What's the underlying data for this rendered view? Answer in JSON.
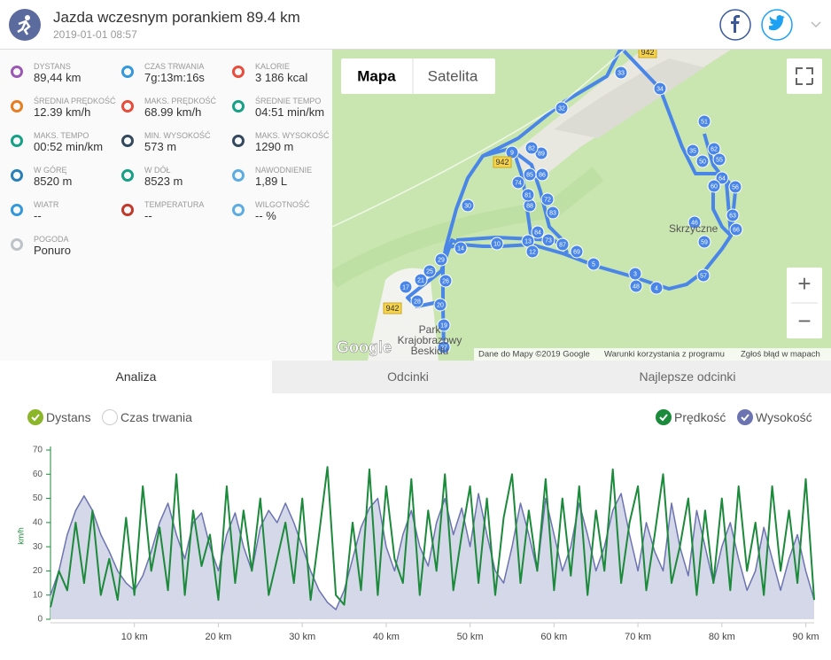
{
  "header": {
    "title": "Jazda wczesnym porankiem 89.4 km",
    "date": "2019-01-01 08:57"
  },
  "stats": [
    {
      "label": "DYSTANS",
      "value": "89,44 km",
      "color": "#9b59b6"
    },
    {
      "label": "CZAS TRWANIA",
      "value": "7g:13m:16s",
      "color": "#3498db"
    },
    {
      "label": "KALORIE",
      "value": "3 186 kcal",
      "color": "#e74c3c"
    },
    {
      "label": "ŚREDNIA PRĘDKOŚĆ",
      "value": "12.39 km/h",
      "color": "#e67e22"
    },
    {
      "label": "MAKS. PRĘDKOŚĆ",
      "value": "68.99 km/h",
      "color": "#e74c3c"
    },
    {
      "label": "ŚREDNIE TEMPO",
      "value": "04:51 min/km",
      "color": "#16a085"
    },
    {
      "label": "MAKS. TEMPO",
      "value": "00:52 min/km",
      "color": "#16a085"
    },
    {
      "label": "MIN. WYSOKOŚĆ",
      "value": "573 m",
      "color": "#34495e"
    },
    {
      "label": "MAKS. WYSOKOŚĆ",
      "value": "1290 m",
      "color": "#34495e"
    },
    {
      "label": "W GÓRĘ",
      "value": "8520 m",
      "color": "#2980b9"
    },
    {
      "label": "W DÓŁ",
      "value": "8523 m",
      "color": "#16a085"
    },
    {
      "label": "NAWODNIENIE",
      "value": "1,89 L",
      "color": "#5dade2"
    },
    {
      "label": "WIATR",
      "value": "--",
      "color": "#3498db"
    },
    {
      "label": "TEMPERATURA",
      "value": "--",
      "color": "#c0392b"
    },
    {
      "label": "WILGOTNOŚĆ",
      "value": "-- %",
      "color": "#5dade2"
    },
    {
      "label": "POGODA",
      "value": "Ponuro",
      "color": "#bdc3c7"
    }
  ],
  "map": {
    "buttons": [
      "Mapa",
      "Satelita"
    ],
    "road_label": "942",
    "place": "Skrzyczne",
    "park": [
      "Park",
      "Krajobrazowy",
      "Beskidu"
    ],
    "logo": "Google",
    "footer": [
      "Dane do Mapy ©2019 Google",
      "Warunki korzystania z programu",
      "Zgłoś błąd w mapach"
    ],
    "zoom": [
      "+",
      "−"
    ],
    "markers": [
      "33",
      "34",
      "32",
      "51",
      "35",
      "50",
      "62",
      "55",
      "64",
      "60",
      "56",
      "63",
      "66",
      "46",
      "59",
      "57",
      "4",
      "48",
      "3",
      "5",
      "69",
      "87",
      "73",
      "13",
      "12",
      "84",
      "83",
      "72",
      "88",
      "81",
      "74",
      "85",
      "86",
      "89",
      "82",
      "9",
      "10",
      "14",
      "30",
      "29",
      "25",
      "21",
      "26",
      "17",
      "28",
      "20",
      "19",
      "27"
    ]
  },
  "tabs": [
    "Analiza",
    "Odcinki",
    "Najlepsze odcinki"
  ],
  "x_modes": [
    {
      "label": "Dystans",
      "checked": true
    },
    {
      "label": "Czas trwania",
      "checked": false
    }
  ],
  "chart_data": {
    "type": "line",
    "ylabel": "km/h",
    "x": [
      0,
      1,
      2,
      3,
      4,
      5,
      6,
      7,
      8,
      9,
      10,
      11,
      12,
      13,
      14,
      15,
      16,
      17,
      18,
      19,
      20,
      21,
      22,
      23,
      24,
      25,
      26,
      27,
      28,
      29,
      30,
      31,
      32,
      33,
      34,
      35,
      36,
      37,
      38,
      39,
      40,
      41,
      42,
      43,
      44,
      45,
      46,
      47,
      48,
      49,
      50,
      51,
      52,
      53,
      54,
      55,
      56,
      57,
      58,
      59,
      60,
      61,
      62,
      63,
      64,
      65,
      66,
      67,
      68,
      69,
      70,
      71,
      72,
      73,
      74,
      75,
      76,
      77,
      78,
      79,
      80,
      81,
      82,
      83,
      84,
      85,
      86,
      87,
      88,
      89,
      90,
      91
    ],
    "series": [
      {
        "name": "Wysokość",
        "color": "#6b74b0",
        "fill": "#d5d8e8",
        "checked": true,
        "values": [
          10,
          20,
          35,
          45,
          51,
          45,
          35,
          28,
          20,
          15,
          12,
          18,
          28,
          40,
          48,
          35,
          25,
          40,
          44,
          30,
          20,
          35,
          44,
          30,
          20,
          38,
          45,
          40,
          48,
          40,
          30,
          20,
          12,
          7,
          4,
          12,
          25,
          38,
          46,
          50,
          30,
          20,
          35,
          45,
          30,
          22,
          40,
          50,
          35,
          46,
          30,
          52,
          35,
          20,
          15,
          30,
          48,
          35,
          20,
          50,
          35,
          20,
          30,
          48,
          35,
          20,
          30,
          45,
          52,
          35,
          20,
          40,
          28,
          20,
          48,
          30,
          18,
          45,
          30,
          15,
          30,
          40,
          25,
          12,
          20,
          38,
          25,
          12,
          25,
          35,
          20,
          8
        ]
      },
      {
        "name": "Prędkość",
        "color": "#1b8a3a",
        "checked": true,
        "values": [
          5,
          20,
          12,
          40,
          15,
          45,
          10,
          25,
          8,
          42,
          10,
          55,
          20,
          38,
          12,
          60,
          10,
          45,
          22,
          35,
          8,
          55,
          15,
          45,
          20,
          50,
          10,
          25,
          40,
          15,
          50,
          8,
          35,
          63,
          10,
          6,
          40,
          12,
          62,
          10,
          55,
          25,
          15,
          58,
          10,
          45,
          20,
          60,
          12,
          35,
          55,
          15,
          50,
          10,
          42,
          60,
          15,
          45,
          20,
          58,
          12,
          50,
          18,
          55,
          10,
          45,
          20,
          62,
          15,
          40,
          55,
          12,
          35,
          60,
          15,
          30,
          50,
          10,
          45,
          15,
          50,
          12,
          55,
          20,
          40,
          10,
          55,
          20,
          45,
          15,
          58,
          8
        ]
      }
    ],
    "xlim": [
      0,
      91
    ],
    "ylim": [
      0,
      70
    ],
    "yticks": [
      0,
      10,
      20,
      30,
      40,
      50,
      60,
      70
    ],
    "xticks": [
      {
        "value": 10,
        "label": "10 km"
      },
      {
        "value": 20,
        "label": "20 km"
      },
      {
        "value": 30,
        "label": "30 km"
      },
      {
        "value": 40,
        "label": "40 km"
      },
      {
        "value": 50,
        "label": "50 km"
      },
      {
        "value": 60,
        "label": "60 km"
      },
      {
        "value": 70,
        "label": "70 km"
      },
      {
        "value": 80,
        "label": "80 km"
      },
      {
        "value": 90,
        "label": "90 km"
      }
    ]
  }
}
